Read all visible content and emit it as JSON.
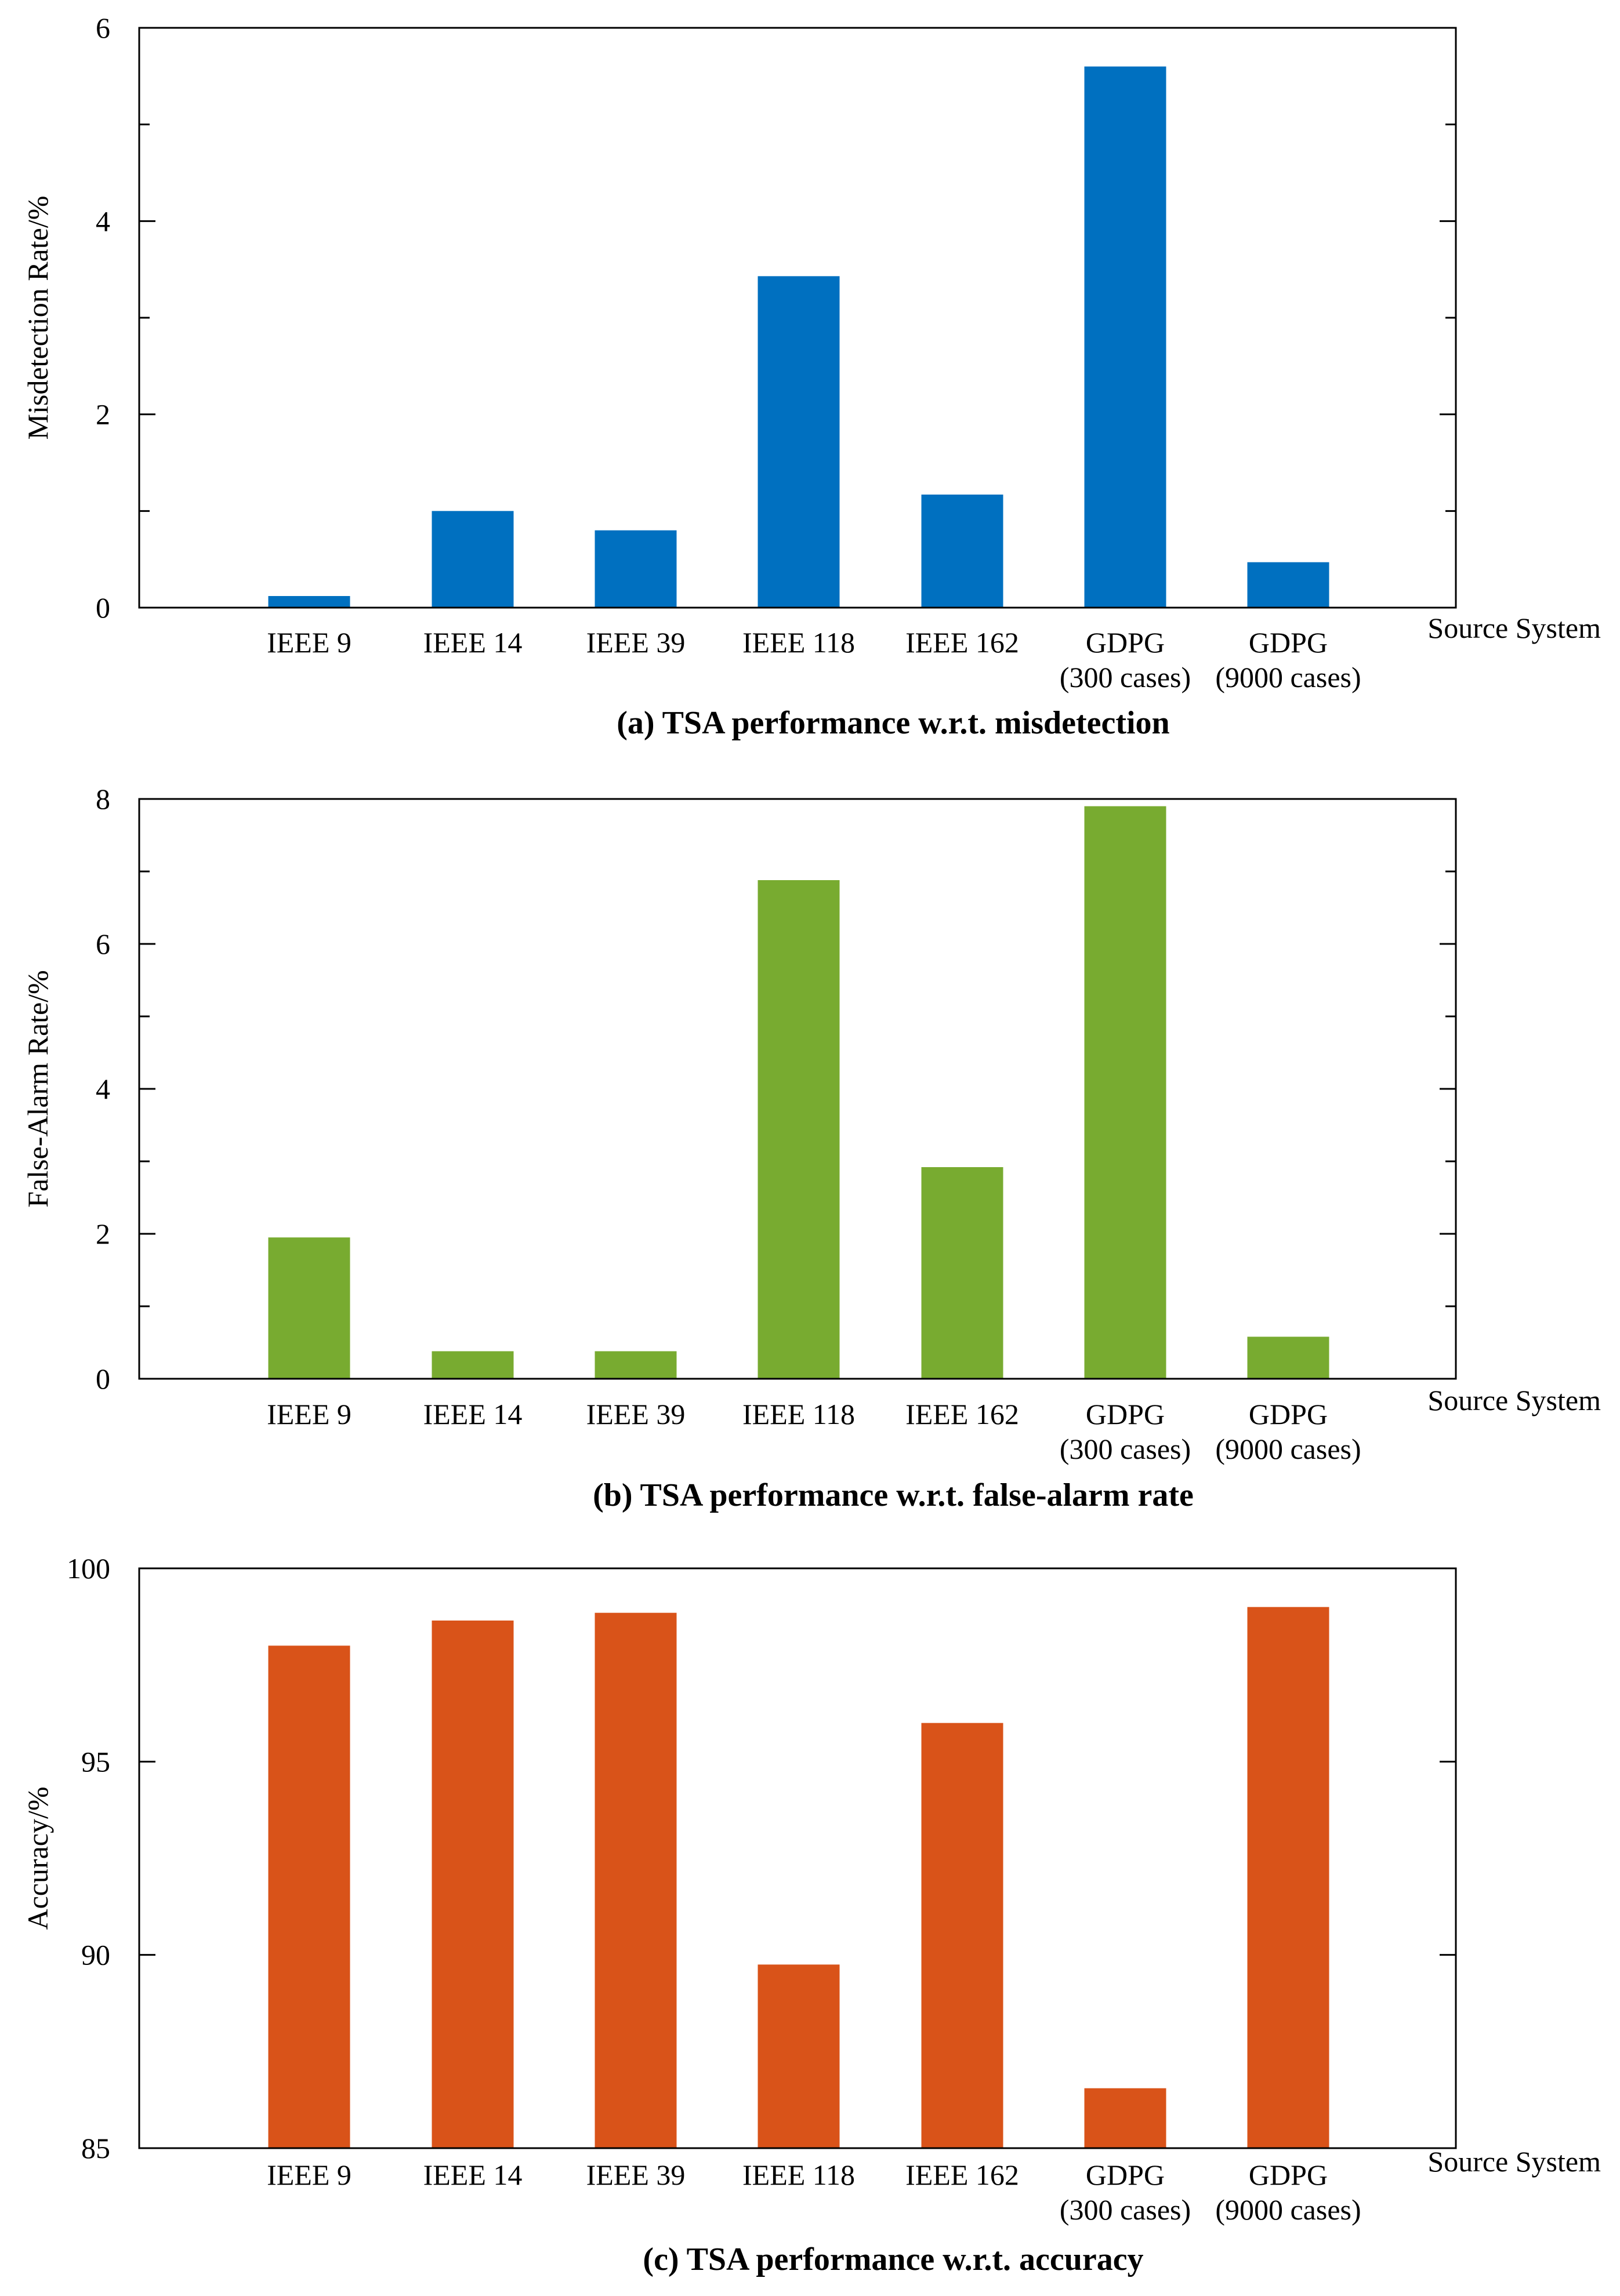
{
  "chart_data": [
    {
      "type": "bar",
      "caption": "(a) TSA performance w.r.t. misdetection",
      "ylabel": "Misdetection Rate/%",
      "xlabel": "Source System",
      "categories": [
        [
          "IEEE 9"
        ],
        [
          "IEEE 14"
        ],
        [
          "IEEE 39"
        ],
        [
          "IEEE 118"
        ],
        [
          "IEEE 162"
        ],
        [
          "GDPG",
          "(300 cases)"
        ],
        [
          "GDPG",
          "(9000 cases)"
        ]
      ],
      "values": [
        0.12,
        1.0,
        0.8,
        3.43,
        1.17,
        5.6,
        0.47
      ],
      "ylim": [
        0,
        6
      ],
      "yticks": [
        0,
        2,
        4,
        6
      ],
      "minor_step": 1,
      "color": "#0070c0"
    },
    {
      "type": "bar",
      "caption": "(b) TSA performance w.r.t. false-alarm rate",
      "ylabel": "False-Alarm Rate/%",
      "xlabel": "Source System",
      "categories": [
        [
          "IEEE 9"
        ],
        [
          "IEEE 14"
        ],
        [
          "IEEE 39"
        ],
        [
          "IEEE 118"
        ],
        [
          "IEEE 162"
        ],
        [
          "GDPG",
          "(300 cases)"
        ],
        [
          "GDPG",
          "(9000 cases)"
        ]
      ],
      "values": [
        1.95,
        0.38,
        0.38,
        6.88,
        2.92,
        7.9,
        0.58
      ],
      "ylim": [
        0,
        8
      ],
      "yticks": [
        0,
        2,
        4,
        6,
        8
      ],
      "minor_step": 1,
      "color": "#78ab30"
    },
    {
      "type": "bar",
      "caption": "(c) TSA performance w.r.t. accuracy",
      "ylabel": "Accuracy/%",
      "xlabel": "Source System",
      "categories": [
        [
          "IEEE 9"
        ],
        [
          "IEEE 14"
        ],
        [
          "IEEE 39"
        ],
        [
          "IEEE 118"
        ],
        [
          "IEEE 162"
        ],
        [
          "GDPG",
          "(300 cases)"
        ],
        [
          "GDPG",
          "(9000 cases)"
        ]
      ],
      "values": [
        98.0,
        98.65,
        98.85,
        89.75,
        96.0,
        86.55,
        99.0
      ],
      "ylim": [
        85,
        100
      ],
      "yticks": [
        85,
        90,
        95,
        100
      ],
      "minor_step": null,
      "color": "#d95319"
    }
  ]
}
